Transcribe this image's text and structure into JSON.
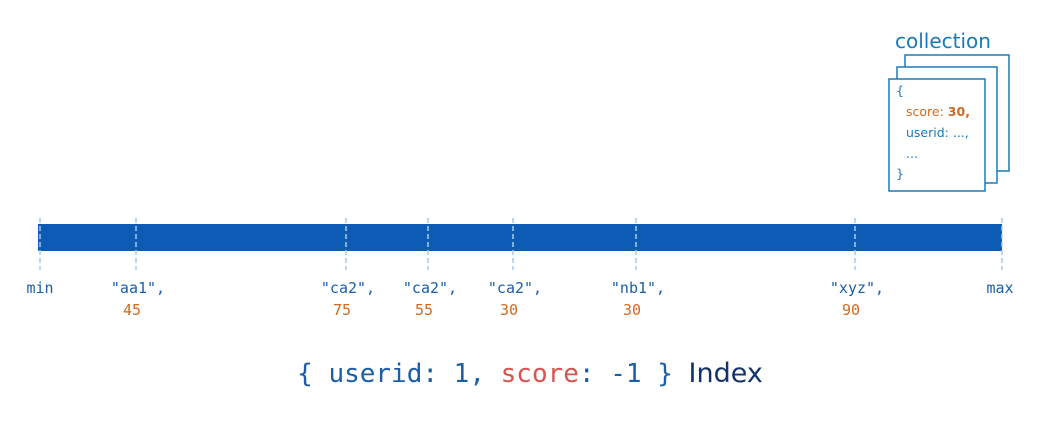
{
  "collection": {
    "title": "collection",
    "document": {
      "open": "{",
      "score_key": "score:",
      "score_value": "30,",
      "userid": "userid: ...,",
      "ellipsis": "...",
      "close": "}"
    }
  },
  "index": {
    "min": "min",
    "max": "max",
    "entries": [
      {
        "key": "\"aa1\",",
        "score": 45
      },
      {
        "key": "\"ca2\",",
        "score": 75
      },
      {
        "key": "\"ca2\",",
        "score": 55
      },
      {
        "key": "\"ca2\",",
        "score": 30
      },
      {
        "key": "\"nb1\",",
        "score": 30
      },
      {
        "key": "\"xyz\",",
        "score": 90
      }
    ]
  },
  "caption": {
    "open": "{",
    "field1": "userid:",
    "order1": "1,",
    "field2": "score",
    "colon": ":",
    "order2": "-1",
    "close": "}",
    "label": "Index"
  }
}
